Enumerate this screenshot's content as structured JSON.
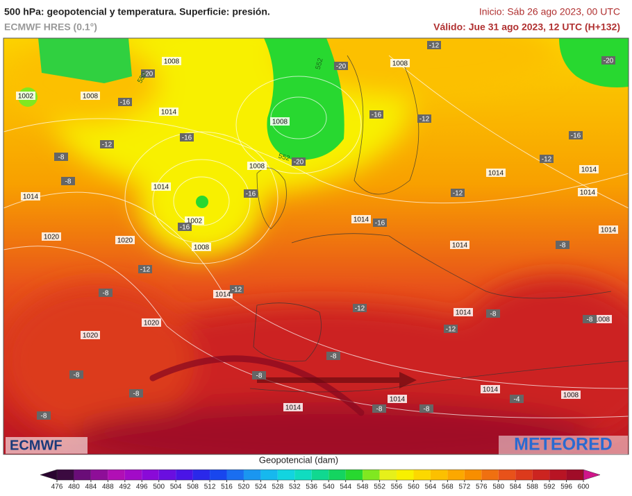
{
  "header": {
    "title": "500 hPa: geopotencial y temperatura. Superficie: presión.",
    "model": "ECMWF HRES (0.1°)",
    "start": "Inicio: Sáb 26 ago 2023, 00 UTC",
    "valid": "Válido: Jue 31 ago 2023, 12 UTC (H+132)"
  },
  "map": {
    "pressure_labels": [
      "1008",
      "1002",
      "1008",
      "1014",
      "1008",
      "1008",
      "1014",
      "1014",
      "1002",
      "1008",
      "1020",
      "1020",
      "1014",
      "1020",
      "1020",
      "1008",
      "1014",
      "1014",
      "1014",
      "1014",
      "1014",
      "1014",
      "1014",
      "1008",
      "1014",
      "1014",
      "1014",
      "1008"
    ],
    "temperature_labels": [
      "-20",
      "-16",
      "-12",
      "-8",
      "-8",
      "-16",
      "-16",
      "-16",
      "-12",
      "-12",
      "-8",
      "-8",
      "-8",
      "-8",
      "-20",
      "-20",
      "-16",
      "-12",
      "-12",
      "-16",
      "-20",
      "-12",
      "-12",
      "-16",
      "-8",
      "-12",
      "-12",
      "-8",
      "-8",
      "-8",
      "-8",
      "-8",
      "-8",
      "-4"
    ],
    "contour_labels": [
      "552",
      "552",
      "552"
    ]
  },
  "logos": {
    "left": "ECMWF",
    "right": "METEORED"
  },
  "colorbar": {
    "label": "Geopotencial (dam)",
    "ticks": [
      476,
      480,
      484,
      488,
      492,
      496,
      500,
      504,
      508,
      512,
      516,
      520,
      524,
      528,
      532,
      536,
      540,
      544,
      548,
      552,
      556,
      560,
      564,
      568,
      572,
      576,
      580,
      584,
      588,
      592,
      596,
      600
    ],
    "colors": [
      "#3b0a40",
      "#6a0d78",
      "#8e0e98",
      "#b10fb5",
      "#a20bc8",
      "#8a0ad8",
      "#6a0ee0",
      "#4a14e6",
      "#2a28ea",
      "#1846ee",
      "#1a6ef0",
      "#1a96f0",
      "#16b8ee",
      "#12d4e0",
      "#10dcc0",
      "#10d890",
      "#14d460",
      "#28d830",
      "#80e820",
      "#e6f01a",
      "#f8f000",
      "#fcd800",
      "#fcc000",
      "#fca800",
      "#f88e00",
      "#f07010",
      "#e8521a",
      "#dc3a1c",
      "#cc2420",
      "#b81424",
      "#a00c28"
    ],
    "under_color": "#2a0430",
    "over_color": "#d0168a"
  }
}
